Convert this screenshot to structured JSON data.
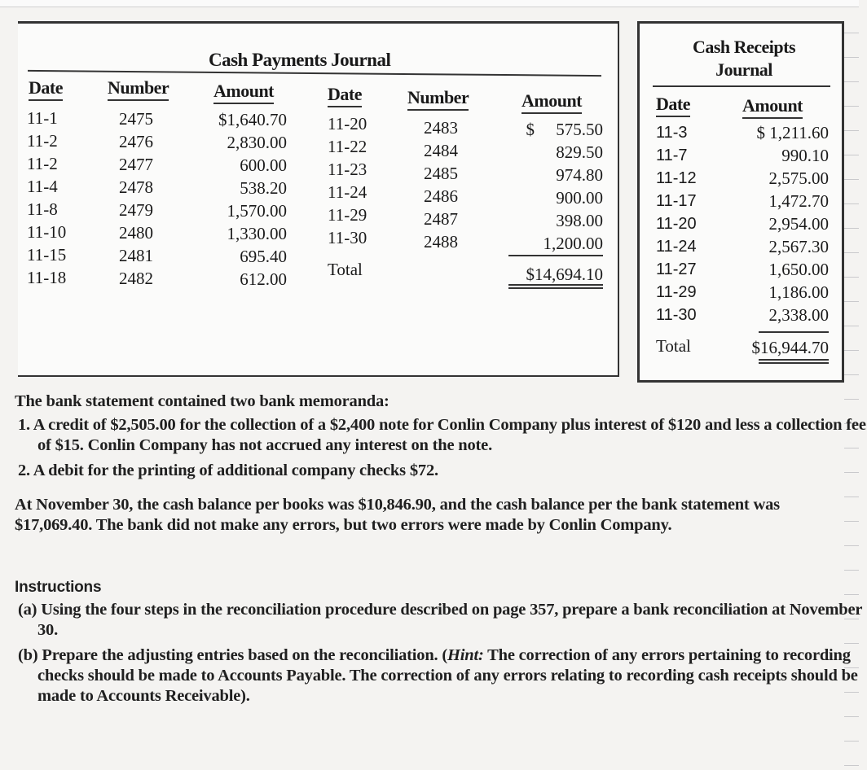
{
  "payments": {
    "title": "Cash Payments Journal",
    "headers": [
      "Date",
      "Number",
      "Amount",
      "Date",
      "Number",
      "Amount"
    ],
    "left": {
      "dates": [
        "11-1",
        "11-2",
        "11-2",
        "11-4",
        "11-8",
        "11-10",
        "11-15",
        "11-18"
      ],
      "numbers": [
        "2475",
        "2476",
        "2477",
        "2478",
        "2479",
        "2480",
        "2481",
        "2482"
      ],
      "amounts": [
        "$1,640.70",
        "2,830.00",
        "600.00",
        "538.20",
        "1,570.00",
        "1,330.00",
        "695.40",
        "612.00"
      ]
    },
    "right": {
      "dates": [
        "11-20",
        "11-22",
        "11-23",
        "11-24",
        "11-29",
        "11-30"
      ],
      "numbers": [
        "2483",
        "2484",
        "2485",
        "2486",
        "2487",
        "2488"
      ],
      "amounts": [
        "$     575.50",
        "829.50",
        "974.80",
        "900.00",
        "398.00",
        "1,200.00"
      ]
    },
    "total_label": "Total",
    "total": "$14,694.10"
  },
  "receipts": {
    "title_line1": "Cash Receipts",
    "title_line2": "Journal",
    "headers": [
      "Date",
      "Amount"
    ],
    "dates": [
      "11-3",
      "11-7",
      "11-12",
      "11-17",
      "11-20",
      "11-24",
      "11-27",
      "11-29",
      "11-30"
    ],
    "amounts": [
      "$ 1,211.60",
      "990.10",
      "2,575.00",
      "1,472.70",
      "2,954.00",
      "2,567.30",
      "1,650.00",
      "1,186.00",
      "2,338.00"
    ],
    "total_label": "Total",
    "total": "$16,944.70"
  },
  "body": {
    "intro": "The bank statement contained two bank memoranda:",
    "memo1": "1.  A credit of $2,505.00 for the collection of a $2,400 note for Conlin Company plus interest of $120 and less a collection fee of $15. Conlin Company has not accrued any interest on the note.",
    "memo2": "2.  A debit for the printing of additional company checks $72.",
    "para": "At November 30, the cash balance per books was $10,846.90, and the cash balance per the bank statement was $17,069.40. The bank did not make any errors, but two errors were made by Conlin Company.",
    "instructions_heading": "Instructions",
    "instr_a": "(a)  Using the four steps in the reconciliation procedure described on page 357, prepare a bank reconciliation at November 30.",
    "instr_b_pre": "(b)  Prepare the adjusting entries based on the reconciliation. (",
    "instr_b_hint": "Hint:",
    "instr_b_post": " The correction of any errors pertaining to recording checks should be made to Accounts Payable. The correction of any errors relating to recording cash receipts should be made to Accounts Receivable)."
  }
}
